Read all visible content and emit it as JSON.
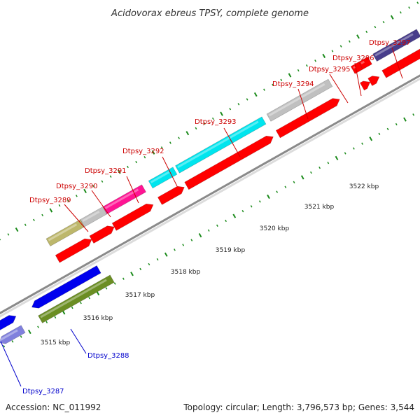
{
  "title": "Acidovorax ebreus TPSY, complete genome",
  "footer": {
    "accession": "Accession: NC_011992",
    "topology": "Topology: circular; Length: 3,796,573 bp; Genes: 3,544"
  },
  "colors": {
    "forward_label": "#cc0000",
    "reverse_label": "#0000cc",
    "cds_red": "#ff0000",
    "backbone": "#999999",
    "tick_green": "#1a8a1a"
  },
  "scale_labels": [
    "3515 kbp",
    "3516 kbp",
    "3517 kbp",
    "3518 kbp",
    "3519 kbp",
    "3520 kbp",
    "3521 kbp",
    "3522 kbp"
  ],
  "genes": [
    {
      "name": "Dtpsy_3287",
      "strand": "reverse",
      "color": "#8080dd"
    },
    {
      "name": "Dtpsy_3288",
      "strand": "reverse",
      "color": "#6b8e23"
    },
    {
      "name": "Dtpsy_3289",
      "strand": "forward",
      "color": "#bdb76b"
    },
    {
      "name": "Dtpsy_3290",
      "strand": "forward",
      "color": "#c0c0c0"
    },
    {
      "name": "Dtpsy_3291",
      "strand": "forward",
      "color": "#ff1493"
    },
    {
      "name": "Dtpsy_3292",
      "strand": "forward",
      "color": "#00e5ee"
    },
    {
      "name": "Dtpsy_3293",
      "strand": "forward",
      "color": "#00e5ee"
    },
    {
      "name": "Dtpsy_3294",
      "strand": "forward",
      "color": "#c0c0c0"
    },
    {
      "name": "Dtpsy_3295",
      "strand": "forward",
      "color": "#ff0000"
    },
    {
      "name": "Dtpsy_3296",
      "strand": "forward",
      "color": "#ff0000"
    },
    {
      "name": "Dtpsy_3297",
      "strand": "forward",
      "color": "#483d8b"
    }
  ]
}
